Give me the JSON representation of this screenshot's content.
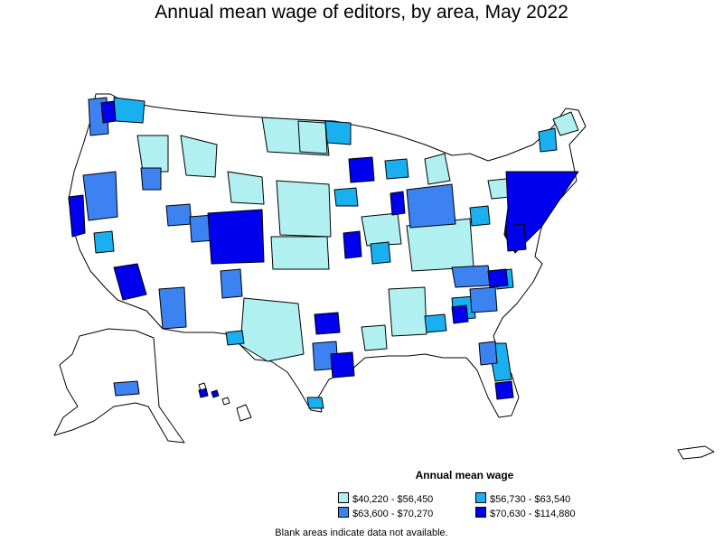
{
  "title": "Annual mean wage of editors, by area, May 2022",
  "legend": {
    "title": "Annual mean wage",
    "items": [
      {
        "label": "$40,220 - $56,450",
        "color": "#b0f0f0"
      },
      {
        "label": "$56,730 - $63,540",
        "color": "#1ab0f0"
      },
      {
        "label": "$63,600 - $70,270",
        "color": "#3c82f0"
      },
      {
        "label": "$70,630 - $114,880",
        "color": "#0000ee"
      }
    ]
  },
  "footnote": "Blank areas indicate data not available."
}
